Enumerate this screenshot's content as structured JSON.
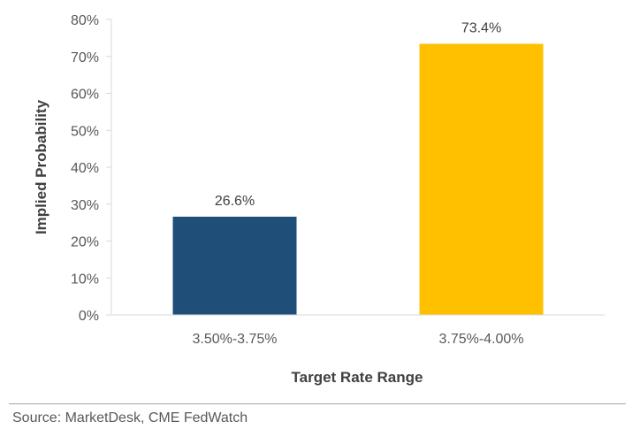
{
  "chart_data": {
    "type": "bar",
    "categories": [
      "3.50%-3.75%",
      "3.75%-4.00%"
    ],
    "values": [
      26.6,
      73.4
    ],
    "data_labels": [
      "26.6%",
      "73.4%"
    ],
    "bar_colors": [
      "#1f4e79",
      "#ffc000"
    ],
    "xlabel": "Target Rate Range",
    "ylabel": "Implied Probability",
    "ylim": [
      0,
      80
    ],
    "yticks": [
      0,
      10,
      20,
      30,
      40,
      50,
      60,
      70,
      80
    ],
    "ytick_labels": [
      "0%",
      "10%",
      "20%",
      "30%",
      "40%",
      "50%",
      "60%",
      "70%",
      "80%"
    ],
    "grid": false,
    "legend": "none"
  },
  "source": "Source: MarketDesk, CME FedWatch"
}
